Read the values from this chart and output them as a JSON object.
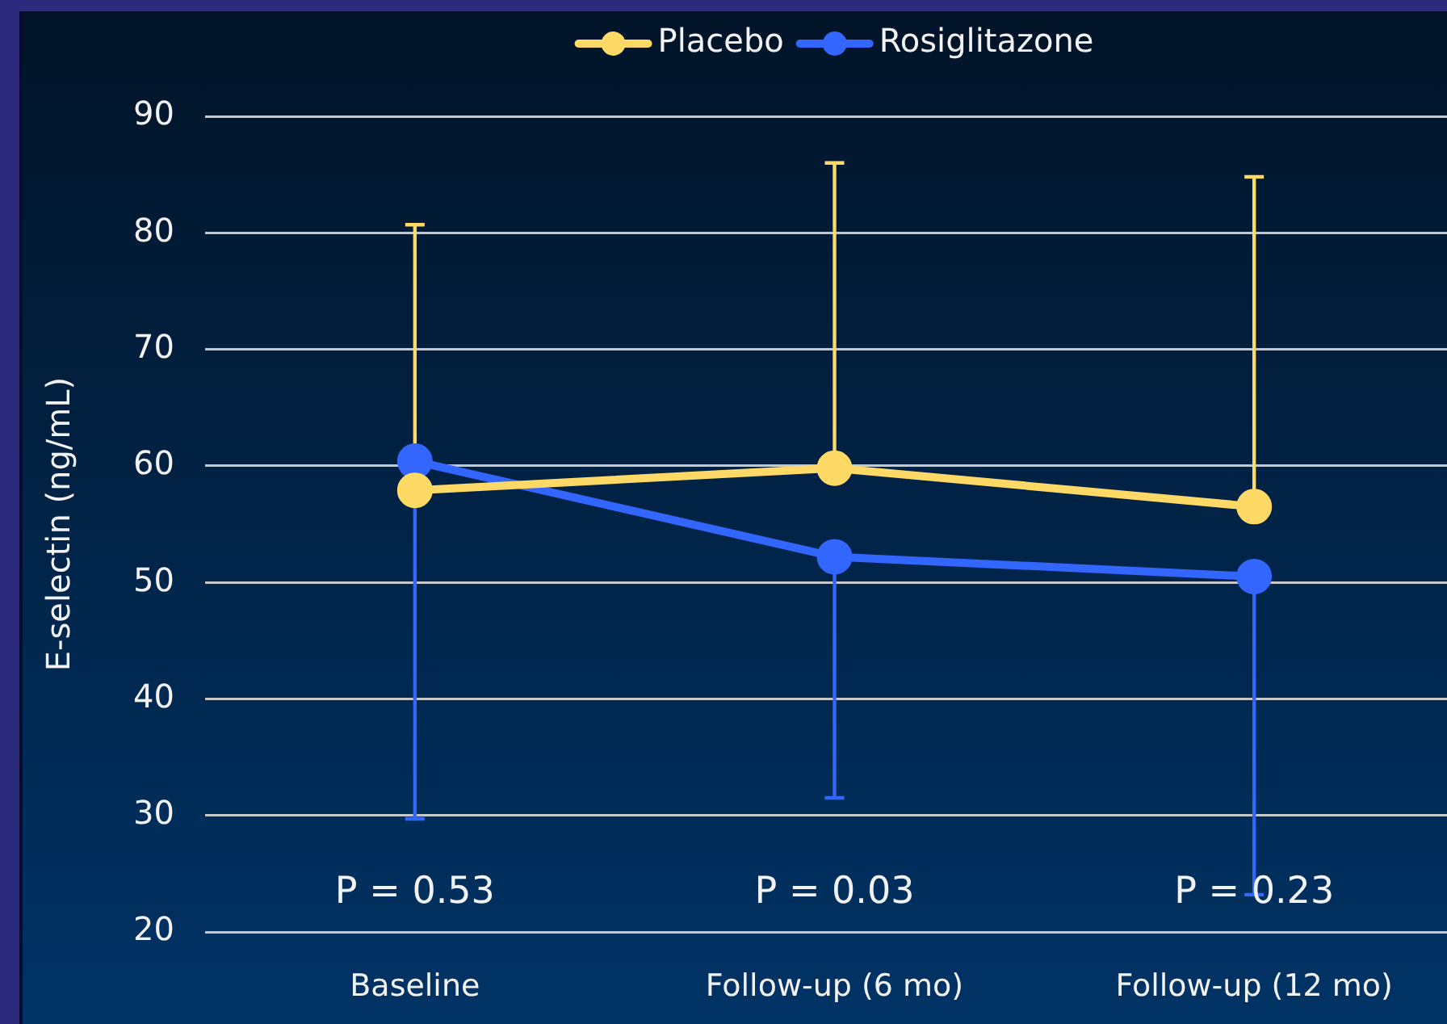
{
  "chart_data": {
    "type": "line",
    "ylabel": "E-selectin (ng/mL)",
    "categories": [
      "Baseline",
      "Follow-up (6 mo)",
      "Follow-up (12 mo)"
    ],
    "series": [
      {
        "name": "Placebo",
        "color": "#ffd966",
        "values": [
          57.9,
          59.8,
          56.5
        ],
        "errors": [
          [
            57.9,
            80.7
          ],
          [
            59.8,
            86.0
          ],
          [
            56.5,
            84.8
          ]
        ]
      },
      {
        "name": "Rosiglitazone",
        "color": "#3366ff",
        "values": [
          60.4,
          52.2,
          50.5
        ],
        "errors": [
          [
            29.7,
            60.4
          ],
          [
            31.5,
            52.2
          ],
          [
            23.2,
            50.5
          ]
        ]
      }
    ],
    "ylim": [
      20,
      90
    ],
    "yticks": [
      20,
      30,
      40,
      50,
      60,
      70,
      80,
      90
    ],
    "grid": "y",
    "legend": "top",
    "marker": "circle",
    "line_style": "solid",
    "annotations": [
      "P = 0.53",
      "P = 0.03",
      "P = 0.23"
    ]
  }
}
